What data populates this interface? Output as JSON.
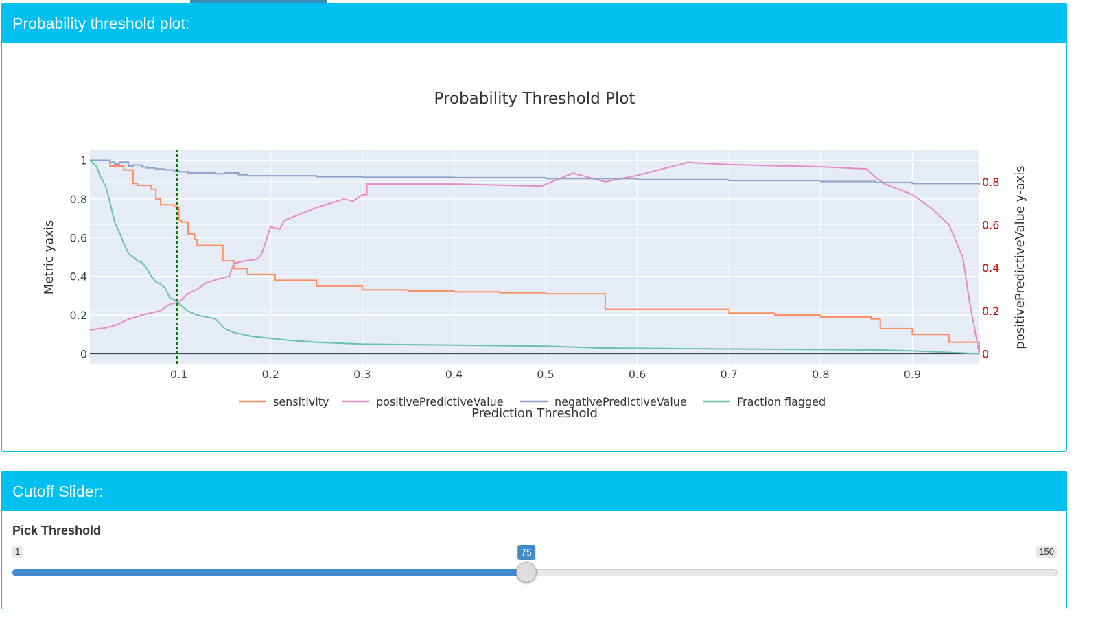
{
  "plot_box": {
    "title": "Probability threshold plot:"
  },
  "slider_box": {
    "title": "Cutoff Slider:",
    "label": "Pick Threshold",
    "min": 1,
    "max": 150,
    "value": 75,
    "min_label": "1",
    "max_label": "150",
    "value_label": "75"
  },
  "colors": {
    "header": "#00c0ef",
    "slider": "#428bca",
    "sensitivity": "#fc8d62",
    "positivePredictiveValue": "#e78ac3",
    "negativePredictiveValue": "#8da0cb",
    "fraction_flagged": "#66c2a5",
    "threshold_line": "#008000",
    "right_axis": "#cc0000"
  },
  "chart_data": {
    "type": "line",
    "title": "Probability Threshold Plot",
    "xlabel": "Prediction Threshold",
    "ylabel": "Metric yaxis",
    "y2label": "positivePredictiveValue y-axis",
    "xlim": [
      0.003,
      0.973
    ],
    "ylim": [
      -0.055,
      1.055
    ],
    "y2lim": [
      -0.05,
      0.95
    ],
    "xticks": [
      0.1,
      0.2,
      0.3,
      0.4,
      0.5,
      0.6,
      0.7,
      0.8,
      0.9
    ],
    "xtick_labels": [
      "0.1",
      "0.2",
      "0.3",
      "0.4",
      "0.5",
      "0.6",
      "0.7",
      "0.8",
      "0.9"
    ],
    "yticks": [
      0,
      0.2,
      0.4,
      0.6,
      0.8,
      1
    ],
    "ytick_labels": [
      "0",
      "0.2",
      "0.4",
      "0.6",
      "0.8",
      "1"
    ],
    "y2ticks": [
      0,
      0.2,
      0.4,
      0.6,
      0.8
    ],
    "y2tick_labels": [
      "0",
      "0.2",
      "0.4",
      "0.6",
      "0.8"
    ],
    "grid": true,
    "legend_position": "bottom",
    "threshold_marker": 0.098,
    "series": [
      {
        "name": "sensitivity",
        "axis": "y",
        "shape": "hv",
        "x": [
          0.003,
          0.025,
          0.04,
          0.05,
          0.055,
          0.07,
          0.075,
          0.08,
          0.095,
          0.1,
          0.103,
          0.11,
          0.117,
          0.12,
          0.12,
          0.13,
          0.145,
          0.148,
          0.148,
          0.16,
          0.175,
          0.175,
          0.205,
          0.205,
          0.245,
          0.245,
          0.25,
          0.25,
          0.275,
          0.275,
          0.3,
          0.3,
          0.32,
          0.35,
          0.4,
          0.45,
          0.5,
          0.53,
          0.565,
          0.6,
          0.65,
          0.7,
          0.75,
          0.8,
          0.855,
          0.865,
          0.9,
          0.94,
          0.973
        ],
        "y": [
          1.0,
          0.97,
          0.95,
          0.88,
          0.87,
          0.85,
          0.8,
          0.77,
          0.76,
          0.69,
          0.68,
          0.62,
          0.59,
          0.56,
          0.56,
          0.56,
          0.56,
          0.55,
          0.48,
          0.44,
          0.41,
          0.41,
          0.38,
          0.38,
          0.38,
          0.38,
          0.38,
          0.35,
          0.35,
          0.35,
          0.33,
          0.33,
          0.33,
          0.325,
          0.32,
          0.315,
          0.31,
          0.31,
          0.23,
          0.23,
          0.23,
          0.21,
          0.2,
          0.19,
          0.18,
          0.13,
          0.1,
          0.06,
          0.0
        ]
      },
      {
        "name": "positivePredictiveValue",
        "axis": "y2",
        "shape": "linear",
        "x": [
          0.003,
          0.02,
          0.03,
          0.04,
          0.045,
          0.06,
          0.07,
          0.08,
          0.09,
          0.1,
          0.11,
          0.12,
          0.13,
          0.145,
          0.155,
          0.16,
          0.17,
          0.185,
          0.19,
          0.2,
          0.21,
          0.215,
          0.25,
          0.28,
          0.29,
          0.3,
          0.305,
          0.305,
          0.4,
          0.495,
          0.53,
          0.565,
          0.6,
          0.655,
          0.7,
          0.8,
          0.85,
          0.86,
          0.87,
          0.9,
          0.92,
          0.94,
          0.955,
          0.962,
          0.973
        ],
        "y": [
          0.11,
          0.12,
          0.13,
          0.15,
          0.16,
          0.18,
          0.19,
          0.2,
          0.23,
          0.24,
          0.28,
          0.3,
          0.33,
          0.35,
          0.36,
          0.42,
          0.43,
          0.44,
          0.46,
          0.59,
          0.58,
          0.62,
          0.68,
          0.72,
          0.71,
          0.74,
          0.74,
          0.79,
          0.79,
          0.78,
          0.84,
          0.8,
          0.83,
          0.89,
          0.88,
          0.87,
          0.86,
          0.82,
          0.79,
          0.74,
          0.68,
          0.6,
          0.45,
          0.25,
          0.0
        ]
      },
      {
        "name": "negativePredictiveValue",
        "axis": "y",
        "shape": "hv",
        "x": [
          0.003,
          0.025,
          0.03,
          0.035,
          0.045,
          0.05,
          0.06,
          0.065,
          0.075,
          0.085,
          0.095,
          0.1,
          0.11,
          0.12,
          0.14,
          0.15,
          0.165,
          0.175,
          0.2,
          0.25,
          0.3,
          0.4,
          0.5,
          0.6,
          0.7,
          0.8,
          0.86,
          0.9,
          0.973
        ],
        "y": [
          1.0,
          0.99,
          0.98,
          0.99,
          0.97,
          0.975,
          0.965,
          0.96,
          0.955,
          0.95,
          0.945,
          0.94,
          0.935,
          0.935,
          0.93,
          0.935,
          0.925,
          0.92,
          0.92,
          0.915,
          0.912,
          0.91,
          0.905,
          0.9,
          0.895,
          0.89,
          0.885,
          0.88,
          0.87
        ]
      },
      {
        "name": "Fraction flagged",
        "axis": "y",
        "shape": "linear",
        "x": [
          0.003,
          0.01,
          0.015,
          0.02,
          0.025,
          0.03,
          0.035,
          0.04,
          0.045,
          0.05,
          0.055,
          0.06,
          0.065,
          0.07,
          0.075,
          0.08,
          0.085,
          0.09,
          0.095,
          0.1,
          0.11,
          0.12,
          0.13,
          0.14,
          0.15,
          0.16,
          0.18,
          0.2,
          0.22,
          0.25,
          0.3,
          0.4,
          0.5,
          0.53,
          0.56,
          0.7,
          0.86,
          0.9,
          0.973
        ],
        "y": [
          1.0,
          0.97,
          0.91,
          0.87,
          0.78,
          0.68,
          0.63,
          0.57,
          0.52,
          0.5,
          0.48,
          0.47,
          0.44,
          0.4,
          0.37,
          0.36,
          0.34,
          0.29,
          0.28,
          0.26,
          0.22,
          0.2,
          0.19,
          0.18,
          0.13,
          0.11,
          0.09,
          0.08,
          0.07,
          0.06,
          0.05,
          0.045,
          0.04,
          0.035,
          0.03,
          0.025,
          0.02,
          0.015,
          0.0
        ]
      }
    ]
  }
}
